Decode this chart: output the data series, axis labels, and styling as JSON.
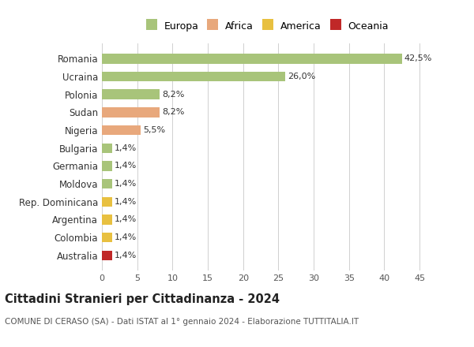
{
  "categories": [
    "Romania",
    "Ucraina",
    "Polonia",
    "Sudan",
    "Nigeria",
    "Bulgaria",
    "Germania",
    "Moldova",
    "Rep. Dominicana",
    "Argentina",
    "Colombia",
    "Australia"
  ],
  "values": [
    42.5,
    26.0,
    8.2,
    8.2,
    5.5,
    1.4,
    1.4,
    1.4,
    1.4,
    1.4,
    1.4,
    1.4
  ],
  "labels": [
    "42,5%",
    "26,0%",
    "8,2%",
    "8,2%",
    "5,5%",
    "1,4%",
    "1,4%",
    "1,4%",
    "1,4%",
    "1,4%",
    "1,4%",
    "1,4%"
  ],
  "colors": [
    "#a8c47a",
    "#a8c47a",
    "#a8c47a",
    "#e8a87c",
    "#e8a87c",
    "#a8c47a",
    "#a8c47a",
    "#a8c47a",
    "#e8c040",
    "#e8c040",
    "#e8c040",
    "#c02828"
  ],
  "legend_labels": [
    "Europa",
    "Africa",
    "America",
    "Oceania"
  ],
  "legend_colors": [
    "#a8c47a",
    "#e8a87c",
    "#e8c040",
    "#c02828"
  ],
  "xlim": [
    0,
    47
  ],
  "xticks": [
    0,
    5,
    10,
    15,
    20,
    25,
    30,
    35,
    40,
    45
  ],
  "title": "Cittadini Stranieri per Cittadinanza - 2024",
  "subtitle": "COMUNE DI CERASO (SA) - Dati ISTAT al 1° gennaio 2024 - Elaborazione TUTTITALIA.IT",
  "title_fontsize": 10.5,
  "subtitle_fontsize": 7.5,
  "bg_color": "#ffffff",
  "grid_color": "#d0d0d0",
  "bar_label_fontsize": 8,
  "ytick_fontsize": 8.5,
  "xtick_fontsize": 8
}
